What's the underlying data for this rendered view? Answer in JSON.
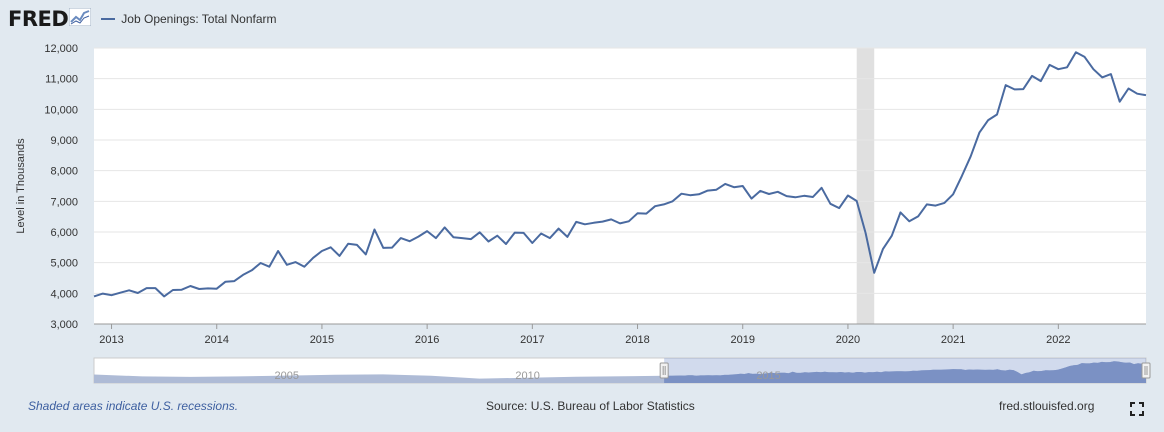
{
  "brand": {
    "logo_text": "FRED"
  },
  "footer": {
    "note": "Shaded areas indicate U.S. recessions.",
    "source": "Source: U.S. Bureau of Labor Statistics",
    "site": "fred.stlouisfed.org"
  },
  "navigator": {
    "year_labels": [
      "2005",
      "2010",
      "2015"
    ]
  },
  "colors": {
    "line": "#4a6aa0",
    "recession": "#e0e0e0",
    "background": "#e1e9f0",
    "note": "#3d5fa0"
  },
  "icons": {
    "logo_graph": "line-graph-icon",
    "fullscreen": "fullscreen-icon"
  },
  "chart_data": {
    "type": "line",
    "title": "",
    "xlabel": "",
    "ylabel": "Level in Thousands",
    "ylim": [
      3000,
      12000
    ],
    "xlim": [
      "2012-11",
      "2022-11"
    ],
    "yticks": [
      "3,000",
      "4,000",
      "5,000",
      "6,000",
      "7,000",
      "8,000",
      "9,000",
      "10,000",
      "11,000",
      "12,000"
    ],
    "xticks": [
      "2013",
      "2014",
      "2015",
      "2016",
      "2017",
      "2018",
      "2019",
      "2020",
      "2021",
      "2022"
    ],
    "grid": true,
    "legend": "top-left",
    "recessions": [
      {
        "start": "2020-02",
        "end": "2020-04"
      }
    ],
    "series": [
      {
        "name": "Job Openings: Total Nonfarm",
        "x": [
          "2012-11",
          "2012-12",
          "2013-01",
          "2013-02",
          "2013-03",
          "2013-04",
          "2013-05",
          "2013-06",
          "2013-07",
          "2013-08",
          "2013-09",
          "2013-10",
          "2013-11",
          "2013-12",
          "2014-01",
          "2014-02",
          "2014-03",
          "2014-04",
          "2014-05",
          "2014-06",
          "2014-07",
          "2014-08",
          "2014-09",
          "2014-10",
          "2014-11",
          "2014-12",
          "2015-01",
          "2015-02",
          "2015-03",
          "2015-04",
          "2015-05",
          "2015-06",
          "2015-07",
          "2015-08",
          "2015-09",
          "2015-10",
          "2015-11",
          "2015-12",
          "2016-01",
          "2016-02",
          "2016-03",
          "2016-04",
          "2016-05",
          "2016-06",
          "2016-07",
          "2016-08",
          "2016-09",
          "2016-10",
          "2016-11",
          "2016-12",
          "2017-01",
          "2017-02",
          "2017-03",
          "2017-04",
          "2017-05",
          "2017-06",
          "2017-07",
          "2017-08",
          "2017-09",
          "2017-10",
          "2017-11",
          "2017-12",
          "2018-01",
          "2018-02",
          "2018-03",
          "2018-04",
          "2018-05",
          "2018-06",
          "2018-07",
          "2018-08",
          "2018-09",
          "2018-10",
          "2018-11",
          "2018-12",
          "2019-01",
          "2019-02",
          "2019-03",
          "2019-04",
          "2019-05",
          "2019-06",
          "2019-07",
          "2019-08",
          "2019-09",
          "2019-10",
          "2019-11",
          "2019-12",
          "2020-01",
          "2020-02",
          "2020-03",
          "2020-04",
          "2020-05",
          "2020-06",
          "2020-07",
          "2020-08",
          "2020-09",
          "2020-10",
          "2020-11",
          "2020-12",
          "2021-01",
          "2021-02",
          "2021-03",
          "2021-04",
          "2021-05",
          "2021-06",
          "2021-07",
          "2021-08",
          "2021-09",
          "2021-10",
          "2021-11",
          "2021-12",
          "2022-01",
          "2022-02",
          "2022-03",
          "2022-04",
          "2022-05",
          "2022-06",
          "2022-07",
          "2022-08",
          "2022-09",
          "2022-10",
          "2022-11"
        ],
        "values": [
          3900,
          3990,
          3940,
          4020,
          4100,
          4010,
          4170,
          4170,
          3900,
          4110,
          4120,
          4240,
          4140,
          4160,
          4150,
          4380,
          4400,
          4600,
          4750,
          4990,
          4870,
          5380,
          4930,
          5020,
          4870,
          5160,
          5380,
          5500,
          5220,
          5620,
          5580,
          5270,
          6080,
          5480,
          5490,
          5800,
          5700,
          5850,
          6030,
          5800,
          6150,
          5830,
          5800,
          5770,
          5990,
          5690,
          5880,
          5610,
          5980,
          5970,
          5640,
          5950,
          5800,
          6110,
          5840,
          6330,
          6250,
          6300,
          6340,
          6410,
          6280,
          6350,
          6610,
          6600,
          6840,
          6900,
          7000,
          7250,
          7200,
          7230,
          7350,
          7380,
          7570,
          7460,
          7500,
          7090,
          7340,
          7240,
          7310,
          7170,
          7130,
          7180,
          7140,
          7440,
          6920,
          6780,
          7190,
          7010,
          5980,
          4670,
          5450,
          5880,
          6640,
          6350,
          6510,
          6900,
          6860,
          6950,
          7230,
          7830,
          8470,
          9240,
          9650,
          9830,
          10790,
          10650,
          10660,
          11090,
          10920,
          11450,
          11310,
          11370,
          11860,
          11710,
          11310,
          11040,
          11150,
          10250,
          10680,
          10510,
          10460
        ]
      }
    ]
  }
}
